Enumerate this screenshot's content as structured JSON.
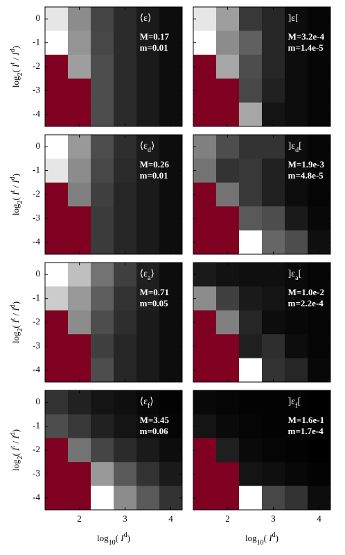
{
  "chart_data": [
    {
      "type": "heatmap",
      "colormap": "gray",
      "nan_color": "#7f0020",
      "x": [
        1.5,
        2,
        2.5,
        3,
        3.5,
        4
      ],
      "y": [
        0,
        -1,
        -2,
        -3,
        -4
      ],
      "xlim": [
        1.25,
        4.25
      ],
      "ylim": [
        -4.5,
        0.5
      ],
      "xticks": [
        2,
        3,
        4
      ],
      "yticks": [
        0,
        -1,
        -2,
        -3,
        -4
      ],
      "ylabel": [
        {
          "text": "log"
        },
        {
          "text": "2",
          "sub": true
        },
        {
          "text": "( "
        },
        {
          "text": "I",
          "italic": true
        },
        {
          "text": "t",
          "sup": true
        },
        {
          "text": " / "
        },
        {
          "text": "I",
          "italic": true
        },
        {
          "text": "d",
          "sup": true
        },
        {
          "text": ")"
        }
      ],
      "label": [
        {
          "text": "⟨ε⟩"
        }
      ],
      "annotations": [
        "M=0.17",
        "m=0.01"
      ],
      "values": [
        [
          0.9,
          0.55,
          0.27,
          0.17,
          0.1,
          0.05
        ],
        [
          1.0,
          0.58,
          0.28,
          0.17,
          0.1,
          0.05
        ],
        [
          null,
          0.62,
          0.3,
          0.17,
          0.1,
          0.05
        ],
        [
          null,
          null,
          0.3,
          0.17,
          0.1,
          0.05
        ],
        [
          null,
          null,
          0.3,
          0.17,
          0.1,
          0.05
        ]
      ]
    },
    {
      "type": "heatmap",
      "colormap": "gray",
      "nan_color": "#7f0020",
      "x": [
        1.5,
        2,
        2.5,
        3,
        3.5,
        4
      ],
      "y": [
        0,
        -1,
        -2,
        -3,
        -4
      ],
      "xlim": [
        1.25,
        4.25
      ],
      "ylim": [
        -4.5,
        0.5
      ],
      "xticks": [
        2,
        3,
        4
      ],
      "yticks": [
        0,
        -1,
        -2,
        -3,
        -4
      ],
      "label": [
        {
          "text": "]ε["
        }
      ],
      "annotations": [
        "M=3.2e-4",
        "m=1.4e-5"
      ],
      "values": [
        [
          0.9,
          0.62,
          0.22,
          0.15,
          0.05,
          0.02
        ],
        [
          1.0,
          0.55,
          0.38,
          0.15,
          0.05,
          0.02
        ],
        [
          null,
          0.65,
          0.3,
          0.15,
          0.05,
          0.02
        ],
        [
          null,
          null,
          0.28,
          0.13,
          0.05,
          0.02
        ],
        [
          null,
          null,
          0.65,
          0.08,
          0.05,
          0.02
        ]
      ]
    },
    {
      "type": "heatmap",
      "colormap": "gray",
      "nan_color": "#7f0020",
      "x": [
        1.5,
        2,
        2.5,
        3,
        3.5,
        4
      ],
      "y": [
        0,
        -1,
        -2,
        -3,
        -4
      ],
      "xlim": [
        1.25,
        4.25
      ],
      "ylim": [
        -4.5,
        0.5
      ],
      "xticks": [
        2,
        3,
        4
      ],
      "yticks": [
        0,
        -1,
        -2,
        -3,
        -4
      ],
      "ylabel": [
        {
          "text": "log"
        },
        {
          "text": "2",
          "sub": true
        },
        {
          "text": "( "
        },
        {
          "text": "I",
          "italic": true
        },
        {
          "text": "t",
          "sup": true
        },
        {
          "text": " / "
        },
        {
          "text": "I",
          "italic": true
        },
        {
          "text": "d",
          "sup": true
        },
        {
          "text": ")"
        }
      ],
      "label": [
        {
          "text": "⟨ε"
        },
        {
          "text": "d",
          "sub": true
        },
        {
          "text": "⟩"
        }
      ],
      "annotations": [
        "M=0.26",
        "m=0.01"
      ],
      "values": [
        [
          1.0,
          0.6,
          0.3,
          0.18,
          0.1,
          0.05
        ],
        [
          0.9,
          0.55,
          0.28,
          0.17,
          0.1,
          0.05
        ],
        [
          null,
          0.5,
          0.25,
          0.15,
          0.1,
          0.05
        ],
        [
          null,
          null,
          0.23,
          0.15,
          0.1,
          0.05
        ],
        [
          null,
          null,
          0.23,
          0.15,
          0.1,
          0.05
        ]
      ]
    },
    {
      "type": "heatmap",
      "colormap": "gray",
      "nan_color": "#7f0020",
      "x": [
        1.5,
        2,
        2.5,
        3,
        3.5,
        4
      ],
      "y": [
        0,
        -1,
        -2,
        -3,
        -4
      ],
      "xlim": [
        1.25,
        4.25
      ],
      "ylim": [
        -4.5,
        0.5
      ],
      "xticks": [
        2,
        3,
        4
      ],
      "yticks": [
        0,
        -1,
        -2,
        -3,
        -4
      ],
      "label": [
        {
          "text": "]ε"
        },
        {
          "text": "d",
          "sub": true
        },
        {
          "text": "["
        }
      ],
      "annotations": [
        "M=1.9e-3",
        "m=4.8e-5"
      ],
      "values": [
        [
          0.5,
          0.3,
          0.2,
          0.2,
          0.05,
          0.02
        ],
        [
          0.45,
          0.2,
          0.22,
          0.13,
          0.05,
          0.02
        ],
        [
          null,
          0.45,
          0.22,
          0.13,
          0.05,
          0.02
        ],
        [
          null,
          null,
          0.35,
          0.3,
          0.1,
          0.03
        ],
        [
          null,
          null,
          1.0,
          0.4,
          0.3,
          0.06
        ]
      ]
    },
    {
      "type": "heatmap",
      "colormap": "gray",
      "nan_color": "#7f0020",
      "x": [
        1.5,
        2,
        2.5,
        3,
        3.5,
        4
      ],
      "y": [
        0,
        -1,
        -2,
        -3,
        -4
      ],
      "xlim": [
        1.25,
        4.25
      ],
      "ylim": [
        -4.5,
        0.5
      ],
      "xticks": [
        2,
        3,
        4
      ],
      "yticks": [
        0,
        -1,
        -2,
        -3,
        -4
      ],
      "ylabel": [
        {
          "text": "log"
        },
        {
          "text": "2",
          "sub": true
        },
        {
          "text": "( "
        },
        {
          "text": "I",
          "italic": true
        },
        {
          "text": "t",
          "sup": true
        },
        {
          "text": " / "
        },
        {
          "text": "I",
          "italic": true
        },
        {
          "text": "d",
          "sup": true
        },
        {
          "text": ")"
        }
      ],
      "label": [
        {
          "text": "⟨ε"
        },
        {
          "text": "a",
          "sub": true
        },
        {
          "text": "⟩"
        }
      ],
      "annotations": [
        "M=0.71",
        "m=0.05"
      ],
      "values": [
        [
          1.0,
          0.75,
          0.45,
          0.25,
          0.12,
          0.05
        ],
        [
          0.8,
          0.6,
          0.37,
          0.2,
          0.12,
          0.05
        ],
        [
          null,
          0.55,
          0.3,
          0.18,
          0.1,
          0.05
        ],
        [
          null,
          null,
          0.25,
          0.15,
          0.1,
          0.05
        ],
        [
          null,
          null,
          0.3,
          0.15,
          0.1,
          0.05
        ]
      ]
    },
    {
      "type": "heatmap",
      "colormap": "gray",
      "nan_color": "#7f0020",
      "x": [
        1.5,
        2,
        2.5,
        3,
        3.5,
        4
      ],
      "y": [
        0,
        -1,
        -2,
        -3,
        -4
      ],
      "xlim": [
        1.25,
        4.25
      ],
      "ylim": [
        -4.5,
        0.5
      ],
      "xticks": [
        2,
        3,
        4
      ],
      "yticks": [
        0,
        -1,
        -2,
        -3,
        -4
      ],
      "label": [
        {
          "text": "]ε"
        },
        {
          "text": "a",
          "sub": true
        },
        {
          "text": "["
        }
      ],
      "annotations": [
        "M=1.0e-2",
        "m=2.2e-4"
      ],
      "values": [
        [
          0.1,
          0.07,
          0.06,
          0.06,
          0.04,
          0.02
        ],
        [
          0.55,
          0.25,
          0.1,
          0.08,
          0.04,
          0.02
        ],
        [
          null,
          0.5,
          0.15,
          0.05,
          0.03,
          0.02
        ],
        [
          null,
          null,
          0.12,
          0.18,
          0.05,
          0.02
        ],
        [
          null,
          null,
          1.0,
          0.2,
          0.15,
          0.03
        ]
      ]
    },
    {
      "type": "heatmap",
      "colormap": "gray",
      "nan_color": "#7f0020",
      "x": [
        1.5,
        2,
        2.5,
        3,
        3.5,
        4
      ],
      "y": [
        0,
        -1,
        -2,
        -3,
        -4
      ],
      "xlim": [
        1.25,
        4.25
      ],
      "ylim": [
        -4.5,
        0.5
      ],
      "xticks": [
        2,
        3,
        4
      ],
      "yticks": [
        0,
        -1,
        -2,
        -3,
        -4
      ],
      "ylabel": [
        {
          "text": "log"
        },
        {
          "text": "2",
          "sub": true
        },
        {
          "text": "( "
        },
        {
          "text": "I",
          "italic": true
        },
        {
          "text": "t",
          "sup": true
        },
        {
          "text": " / "
        },
        {
          "text": "I",
          "italic": true
        },
        {
          "text": "d",
          "sup": true
        },
        {
          "text": ")"
        }
      ],
      "xlabel": [
        {
          "text": "log"
        },
        {
          "text": "10",
          "sub": true
        },
        {
          "text": "( "
        },
        {
          "text": "I",
          "italic": true
        },
        {
          "text": "d",
          "sup": true
        },
        {
          "text": ")"
        }
      ],
      "label": [
        {
          "text": "⟨ε"
        },
        {
          "text": "f",
          "sub": true
        },
        {
          "text": "⟩"
        }
      ],
      "annotations": [
        "M=3.45",
        "m=0.06"
      ],
      "values": [
        [
          0.2,
          0.13,
          0.08,
          0.06,
          0.03,
          0.01
        ],
        [
          0.3,
          0.22,
          0.13,
          0.08,
          0.05,
          0.02
        ],
        [
          null,
          0.45,
          0.27,
          0.17,
          0.1,
          0.05
        ],
        [
          null,
          null,
          0.6,
          0.35,
          0.2,
          0.1
        ],
        [
          null,
          null,
          1.0,
          0.55,
          0.35,
          0.2
        ]
      ]
    },
    {
      "type": "heatmap",
      "colormap": "gray",
      "nan_color": "#7f0020",
      "x": [
        1.5,
        2,
        2.5,
        3,
        3.5,
        4
      ],
      "y": [
        0,
        -1,
        -2,
        -3,
        -4
      ],
      "xlim": [
        1.25,
        4.25
      ],
      "ylim": [
        -4.5,
        0.5
      ],
      "xticks": [
        2,
        3,
        4
      ],
      "yticks": [
        0,
        -1,
        -2,
        -3,
        -4
      ],
      "xlabel": [
        {
          "text": "log"
        },
        {
          "text": "10",
          "sub": true
        },
        {
          "text": "( "
        },
        {
          "text": "I",
          "italic": true
        },
        {
          "text": "d",
          "sup": true
        },
        {
          "text": ")"
        }
      ],
      "label": [
        {
          "text": "]ε"
        },
        {
          "text": "f",
          "sub": true
        },
        {
          "text": "["
        }
      ],
      "annotations": [
        "M=1.6e-1",
        "m=1.7e-4"
      ],
      "values": [
        [
          0.03,
          0.02,
          0.01,
          0.01,
          0.01,
          0
        ],
        [
          0.08,
          0.04,
          0.02,
          0.01,
          0.01,
          0
        ],
        [
          null,
          0.12,
          0.04,
          0.02,
          0.01,
          0
        ],
        [
          null,
          null,
          0.08,
          0.06,
          0.03,
          0.01
        ],
        [
          null,
          null,
          1.0,
          0.28,
          0.2,
          0.05
        ]
      ]
    }
  ]
}
